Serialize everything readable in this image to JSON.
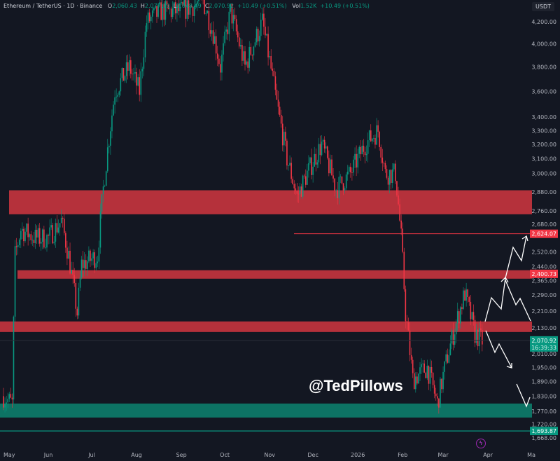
{
  "header": {
    "symbol": "Ethereum / TetherUS · 1D · Binance",
    "open_label": "O",
    "open": "2,060.43",
    "high_label": "H",
    "high": "2,077.19",
    "low_label": "L",
    "low": "2,048.49",
    "close_label": "C",
    "close": "2,070.92",
    "change": "+10.49 (+0.51%)",
    "vol_label": "Vol",
    "volume": "1.52K",
    "vol_change": "+10.49 (+0.51%)"
  },
  "currency_unit": "USDT",
  "watermark": "@TedPillows",
  "colors": {
    "background": "#131722",
    "up": "#089981",
    "down": "#f23645",
    "zone_red": "#c8343e",
    "zone_green": "#0d7d6c",
    "annotation": "#ffffff"
  },
  "chart_data": {
    "type": "candlestick",
    "title": "",
    "xlabel": "",
    "ylabel": "",
    "y_scale": "log",
    "ylim": [
      1668,
      4200
    ],
    "y_ticks": [
      4200,
      4000,
      3800,
      3600,
      3400,
      3300,
      3200,
      3100,
      3000,
      2880,
      2760,
      2680,
      2520,
      2440,
      2365,
      2290,
      2210,
      2130,
      2010,
      1950,
      1890,
      1830,
      1770,
      1720,
      1668
    ],
    "y_tick_labels": [
      "4,200.00",
      "4,000.00",
      "3,800.00",
      "3,600.00",
      "3,400.00",
      "3,300.00",
      "3,200.00",
      "3,100.00",
      "3,000.00",
      "2,880.00",
      "2,760.00",
      "2,680.00",
      "2,520.00",
      "2,440.00",
      "2,365.00",
      "2,290.00",
      "2,210.00",
      "2,130.00",
      "2,010.00",
      "1,950.00",
      "1,890.00",
      "1,830.00",
      "1,770.00",
      "1,720.00",
      "1,668.00"
    ],
    "x_ticks": [
      {
        "date": "2025-05-01",
        "label": "May"
      },
      {
        "date": "2025-06-01",
        "label": "Jun"
      },
      {
        "date": "2025-07-01",
        "label": "Jul"
      },
      {
        "date": "2025-08-01",
        "label": "Aug"
      },
      {
        "date": "2025-09-01",
        "label": "Sep"
      },
      {
        "date": "2025-10-01",
        "label": "Oct"
      },
      {
        "date": "2025-11-01",
        "label": "Nov"
      },
      {
        "date": "2025-12-01",
        "label": "Dec"
      },
      {
        "date": "2026-01-01",
        "label": "2026"
      },
      {
        "date": "2026-02-01",
        "label": "Feb"
      },
      {
        "date": "2026-03-01",
        "label": "Mar"
      },
      {
        "date": "2026-04-01",
        "label": "Apr"
      },
      {
        "date": "2026-05-01",
        "label": "Ma"
      }
    ],
    "approx_close_path": [
      [
        "2025-05-01",
        1830
      ],
      [
        "2025-05-07",
        1800
      ],
      [
        "2025-05-09",
        2500
      ],
      [
        "2025-05-13",
        2650
      ],
      [
        "2025-05-23",
        2600
      ],
      [
        "2025-06-01",
        2600
      ],
      [
        "2025-06-10",
        2700
      ],
      [
        "2025-06-15",
        2500
      ],
      [
        "2025-06-21",
        2200
      ],
      [
        "2025-06-24",
        2450
      ],
      [
        "2025-07-05",
        2500
      ],
      [
        "2025-07-09",
        2900
      ],
      [
        "2025-07-17",
        3600
      ],
      [
        "2025-07-27",
        3800
      ],
      [
        "2025-08-03",
        3600
      ],
      [
        "2025-08-08",
        4200
      ],
      [
        "2025-08-18",
        4300
      ],
      [
        "2025-09-01",
        4300
      ],
      [
        "2025-09-16",
        4400
      ],
      [
        "2025-09-23",
        4100
      ],
      [
        "2025-09-28",
        3800
      ],
      [
        "2025-10-05",
        4300
      ],
      [
        "2025-10-15",
        3800
      ],
      [
        "2025-10-27",
        4200
      ],
      [
        "2025-11-06",
        3500
      ],
      [
        "2025-11-13",
        3100
      ],
      [
        "2025-11-20",
        2850
      ],
      [
        "2025-11-27",
        3000
      ],
      [
        "2025-12-07",
        3200
      ],
      [
        "2025-12-17",
        2900
      ],
      [
        "2025-12-27",
        3000
      ],
      [
        "2026-01-06",
        3200
      ],
      [
        "2026-01-15",
        3300
      ],
      [
        "2026-01-20",
        3000
      ],
      [
        "2026-01-27",
        3000
      ],
      [
        "2026-01-31",
        2600
      ],
      [
        "2026-02-03",
        2200
      ],
      [
        "2026-02-08",
        1900
      ],
      [
        "2026-02-18",
        1950
      ],
      [
        "2026-02-25",
        1800
      ],
      [
        "2026-03-04",
        2000
      ],
      [
        "2026-03-16",
        2300
      ],
      [
        "2026-03-23",
        2100
      ],
      [
        "2026-03-28",
        2070
      ]
    ],
    "zones": [
      {
        "type": "resistance",
        "low": 2740,
        "high": 2890,
        "color": "red"
      },
      {
        "type": "resistance",
        "low": 2375,
        "high": 2420,
        "color": "red"
      },
      {
        "type": "resistance",
        "low": 2110,
        "high": 2160,
        "color": "red"
      },
      {
        "type": "support",
        "low": 1745,
        "high": 1800,
        "color": "green"
      }
    ],
    "price_lines": [
      {
        "price": 2624.07,
        "label": "2,624.07",
        "color": "red"
      },
      {
        "price": 2400.73,
        "label": "2,400.73",
        "color": "red"
      },
      {
        "price": 1693.87,
        "label": "1,693.87",
        "color": "green"
      }
    ],
    "last_price": {
      "price": 2070.92,
      "label": "2,070.92",
      "countdown": "16:39:33"
    }
  }
}
